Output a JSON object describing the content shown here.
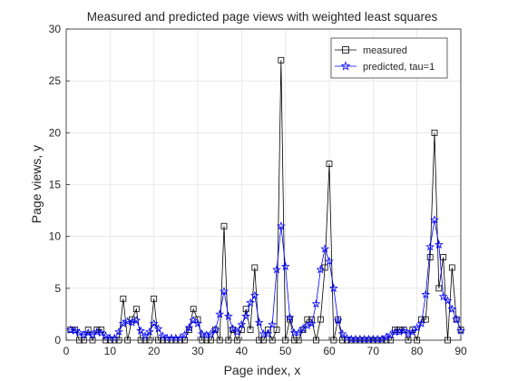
{
  "chart_data": {
    "type": "line",
    "title": "Measured and predicted page views with weighted least squares",
    "xlabel": "Page index, x",
    "ylabel": "Page views, y",
    "xlim": [
      0,
      90
    ],
    "ylim": [
      0,
      30
    ],
    "xticks": [
      0,
      10,
      20,
      30,
      40,
      50,
      60,
      70,
      80,
      90
    ],
    "yticks": [
      0,
      5,
      10,
      15,
      20,
      25,
      30
    ],
    "grid": true,
    "legend_position": "top-right",
    "series": [
      {
        "name": "measured",
        "color": "#000000",
        "marker": "square",
        "x": [
          1,
          2,
          3,
          4,
          5,
          6,
          7,
          8,
          9,
          10,
          11,
          12,
          13,
          14,
          15,
          16,
          17,
          18,
          19,
          20,
          21,
          22,
          23,
          24,
          25,
          26,
          27,
          28,
          29,
          30,
          31,
          32,
          33,
          34,
          35,
          36,
          37,
          38,
          39,
          40,
          41,
          42,
          43,
          44,
          45,
          46,
          47,
          48,
          49,
          50,
          51,
          52,
          53,
          54,
          55,
          56,
          57,
          58,
          59,
          60,
          61,
          62,
          63,
          64,
          65,
          66,
          67,
          68,
          69,
          70,
          71,
          72,
          73,
          74,
          75,
          76,
          77,
          78,
          79,
          80,
          81,
          82,
          83,
          84,
          85,
          86,
          87,
          88,
          89,
          90
        ],
        "y": [
          1,
          1,
          0,
          0,
          1,
          0,
          1,
          1,
          0,
          0,
          0,
          0,
          4,
          0,
          2,
          3,
          0,
          0,
          0,
          4,
          0,
          0,
          0,
          0,
          0,
          0,
          0,
          1,
          3,
          2,
          0,
          0,
          0,
          1,
          0,
          11,
          0,
          1,
          0,
          1,
          3,
          1,
          7,
          0,
          0,
          1,
          0,
          1,
          27,
          0,
          2,
          0,
          0,
          1,
          2,
          2,
          0,
          2,
          7,
          17,
          0,
          2,
          0,
          0,
          0,
          0,
          0,
          0,
          0,
          0,
          0,
          0,
          0,
          0,
          1,
          1,
          1,
          0,
          1,
          0,
          2,
          2,
          8,
          20,
          5,
          8,
          0,
          7,
          2,
          1
        ]
      },
      {
        "name": "predicted, tau=1",
        "color": "#0000ff",
        "marker": "star",
        "x": [
          1,
          2,
          3,
          4,
          5,
          6,
          7,
          8,
          9,
          10,
          11,
          12,
          13,
          14,
          15,
          16,
          17,
          18,
          19,
          20,
          21,
          22,
          23,
          24,
          25,
          26,
          27,
          28,
          29,
          30,
          31,
          32,
          33,
          34,
          35,
          36,
          37,
          38,
          39,
          40,
          41,
          42,
          43,
          44,
          45,
          46,
          47,
          48,
          49,
          50,
          51,
          52,
          53,
          54,
          55,
          56,
          57,
          58,
          59,
          60,
          61,
          62,
          63,
          64,
          65,
          66,
          67,
          68,
          69,
          70,
          71,
          72,
          73,
          74,
          75,
          76,
          77,
          78,
          79,
          80,
          81,
          82,
          83,
          84,
          85,
          86,
          87,
          88,
          89,
          90
        ],
        "y": [
          1,
          0.9,
          0.7,
          0.5,
          0.7,
          0.5,
          0.8,
          0.7,
          0.4,
          0.2,
          0.2,
          0.8,
          1.6,
          1.8,
          1.7,
          1.9,
          0.9,
          0.4,
          0.8,
          1.6,
          1.1,
          0.4,
          0.2,
          0.2,
          0.2,
          0.2,
          0.5,
          1.2,
          1.9,
          1.6,
          0.6,
          0.5,
          0.6,
          1.0,
          2.5,
          4.7,
          2.3,
          1.1,
          0.8,
          1.5,
          2.3,
          3.6,
          4.3,
          1.7,
          0.6,
          0.6,
          1.5,
          6.8,
          11.0,
          7.1,
          2.2,
          0.7,
          0.7,
          1.1,
          1.4,
          1.6,
          3.5,
          6.8,
          8.8,
          7.6,
          5.0,
          1.9,
          0.6,
          0.2,
          0.1,
          0.1,
          0.1,
          0.1,
          0.1,
          0.1,
          0.1,
          0.1,
          0.3,
          0.5,
          0.8,
          0.8,
          0.9,
          0.6,
          0.8,
          1.2,
          1.6,
          4.4,
          9.0,
          11.6,
          9.2,
          4.2,
          3.8,
          3.0,
          2.0,
          0.9
        ]
      }
    ]
  }
}
